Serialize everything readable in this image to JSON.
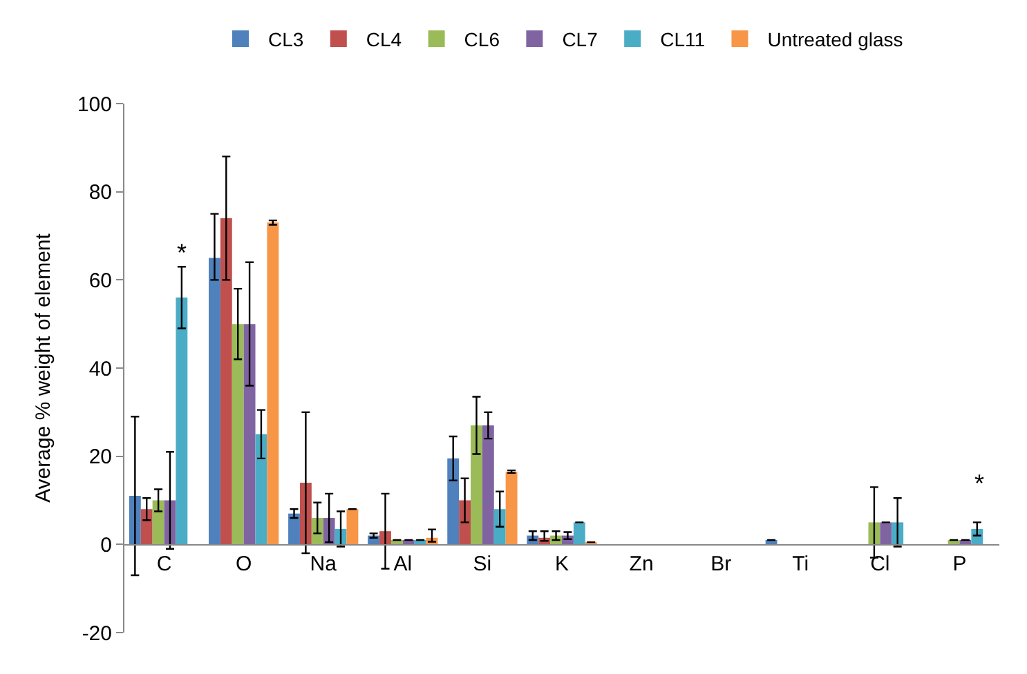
{
  "chart_data": {
    "type": "bar",
    "ylabel": "Average % weight of element",
    "categories": [
      "C",
      "O",
      "Na",
      "Al",
      "Si",
      "K",
      "Zn",
      "Br",
      "Ti",
      "Cl",
      "P"
    ],
    "series": [
      {
        "name": "CL3",
        "color": "#4f81bd",
        "values": [
          11,
          65,
          7,
          2,
          19.5,
          2,
          null,
          null,
          1,
          null,
          null
        ],
        "errors": [
          18,
          [
            60,
            75
          ],
          1,
          0.5,
          5,
          1,
          null,
          null,
          null,
          null,
          null
        ]
      },
      {
        "name": "CL4",
        "color": "#c0504d",
        "values": [
          8,
          74,
          14,
          3,
          10,
          1.5,
          null,
          null,
          null,
          null,
          null
        ],
        "errors": [
          2.5,
          14,
          16,
          8.5,
          5,
          [
            0.8,
            3
          ],
          null,
          null,
          null,
          null,
          null
        ]
      },
      {
        "name": "CL6",
        "color": "#9bbb59",
        "values": [
          10,
          50,
          6,
          1,
          27,
          2,
          null,
          null,
          null,
          5,
          1
        ],
        "errors": [
          2.5,
          8,
          3.5,
          null,
          6.5,
          1,
          null,
          null,
          null,
          8,
          null
        ]
      },
      {
        "name": "CL7",
        "color": "#8064a2",
        "values": [
          10,
          50,
          6,
          1,
          27,
          2,
          null,
          null,
          null,
          5,
          1
        ],
        "errors": [
          11,
          14,
          5.5,
          null,
          3,
          0.8,
          null,
          null,
          null,
          null,
          null
        ]
      },
      {
        "name": "CL11",
        "color": "#4bacc6",
        "values": [
          56,
          25,
          3.5,
          1,
          8,
          5,
          null,
          null,
          null,
          5,
          3.5
        ],
        "errors": [
          7,
          5.5,
          4,
          null,
          4,
          null,
          null,
          null,
          null,
          5.5,
          1.5
        ]
      },
      {
        "name": "Untreated glass",
        "color": "#f79646",
        "values": [
          null,
          73,
          8,
          1.5,
          16.5,
          0.5,
          null,
          null,
          null,
          null,
          null
        ],
        "errors": [
          null,
          0.5,
          null,
          [
            0.6,
            3.4
          ],
          0.3,
          null,
          null,
          null,
          null,
          null,
          null
        ]
      }
    ],
    "ylim": [
      -20,
      100
    ],
    "yticks": [
      -20,
      0,
      20,
      40,
      60,
      80,
      100
    ],
    "legend": "top",
    "annotations": [
      "*",
      "*"
    ]
  }
}
